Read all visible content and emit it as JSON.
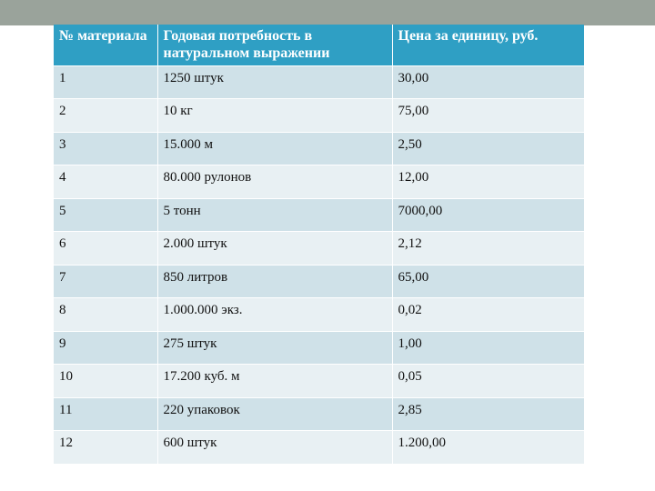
{
  "table": {
    "headers": [
      "№ материала",
      "Годовая потребность в натуральном выражении",
      "Цена за единицу, руб."
    ],
    "rows": [
      [
        "1",
        "1250 штук",
        "30,00"
      ],
      [
        "2",
        "10 кг",
        "75,00"
      ],
      [
        "3",
        "15.000 м",
        "2,50"
      ],
      [
        "4",
        "80.000 рулонов",
        "12,00"
      ],
      [
        "5",
        "5 тонн",
        "7000,00"
      ],
      [
        "6",
        "2.000 штук",
        "2,12"
      ],
      [
        "7",
        "850 литров",
        "65,00"
      ],
      [
        "8",
        "1.000.000 экз.",
        "0,02"
      ],
      [
        "9",
        "275 штук",
        "1,00"
      ],
      [
        "10",
        "17.200 куб. м",
        "0,05"
      ],
      [
        "11",
        "220 упаковок",
        "2,85"
      ],
      [
        "12",
        "600 штук",
        "1.200,00"
      ]
    ]
  },
  "colors": {
    "header_bg": "#2f9fc4",
    "row_dark": "#cfe1e8",
    "row_light": "#e8f0f3",
    "top_bar": "#9aa39b"
  }
}
